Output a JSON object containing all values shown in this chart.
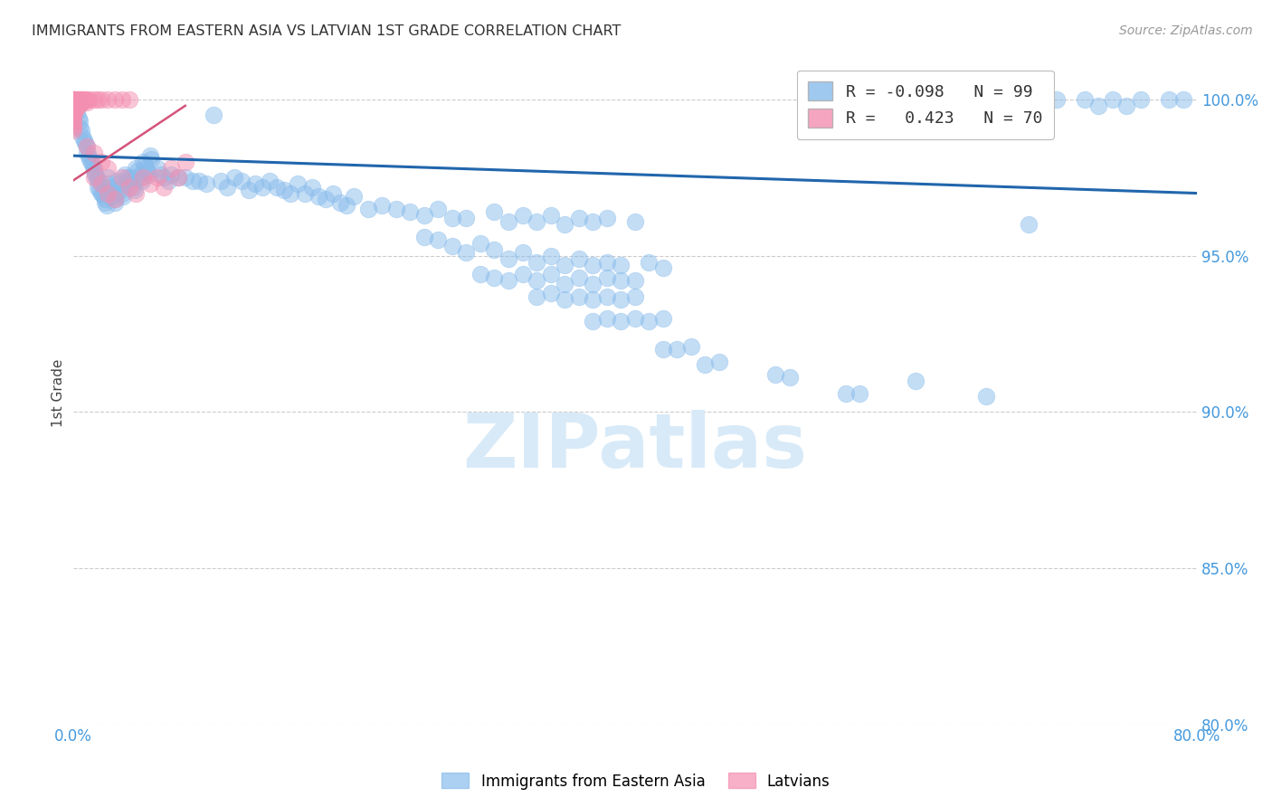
{
  "title": "IMMIGRANTS FROM EASTERN ASIA VS LATVIAN 1ST GRADE CORRELATION CHART",
  "source": "Source: ZipAtlas.com",
  "ylabel": "1st Grade",
  "watermark": "ZIPatlas",
  "legend_blue_r": "-0.098",
  "legend_blue_n": "99",
  "legend_pink_r": "0.423",
  "legend_pink_n": "70",
  "xlim": [
    0.0,
    0.8
  ],
  "ylim": [
    0.872,
    1.012
  ],
  "yticks": [
    0.88,
    0.9,
    0.92,
    0.94,
    0.95,
    0.96,
    0.98,
    1.0
  ],
  "ytick_display": [
    0.8,
    0.85,
    0.9,
    0.95,
    1.0
  ],
  "ytick_labels": [
    "80.0%",
    "85.0%",
    "90.0%",
    "95.0%",
    "100.0%"
  ],
  "xticks": [
    0.0,
    0.1,
    0.2,
    0.3,
    0.4,
    0.5,
    0.6,
    0.7,
    0.8
  ],
  "xtick_labels": [
    "0.0%",
    "",
    "",
    "",
    "",
    "",
    "",
    "",
    "80.0%"
  ],
  "blue_scatter": [
    [
      0.002,
      0.998
    ],
    [
      0.003,
      0.996
    ],
    [
      0.004,
      0.994
    ],
    [
      0.005,
      0.993
    ],
    [
      0.005,
      0.991
    ],
    [
      0.006,
      0.99
    ],
    [
      0.007,
      0.988
    ],
    [
      0.008,
      0.987
    ],
    [
      0.009,
      0.986
    ],
    [
      0.01,
      0.985
    ],
    [
      0.01,
      0.983
    ],
    [
      0.011,
      0.982
    ],
    [
      0.012,
      0.981
    ],
    [
      0.013,
      0.98
    ],
    [
      0.014,
      0.979
    ],
    [
      0.015,
      0.978
    ],
    [
      0.015,
      0.977
    ],
    [
      0.016,
      0.976
    ],
    [
      0.017,
      0.975
    ],
    [
      0.018,
      0.974
    ],
    [
      0.018,
      0.972
    ],
    [
      0.019,
      0.971
    ],
    [
      0.02,
      0.97
    ],
    [
      0.021,
      0.97
    ],
    [
      0.022,
      0.969
    ],
    [
      0.023,
      0.968
    ],
    [
      0.023,
      0.967
    ],
    [
      0.024,
      0.966
    ],
    [
      0.025,
      0.975
    ],
    [
      0.025,
      0.973
    ],
    [
      0.026,
      0.972
    ],
    [
      0.027,
      0.971
    ],
    [
      0.028,
      0.97
    ],
    [
      0.029,
      0.969
    ],
    [
      0.03,
      0.968
    ],
    [
      0.03,
      0.967
    ],
    [
      0.031,
      0.974
    ],
    [
      0.032,
      0.973
    ],
    [
      0.033,
      0.972
    ],
    [
      0.034,
      0.971
    ],
    [
      0.035,
      0.97
    ],
    [
      0.036,
      0.969
    ],
    [
      0.037,
      0.976
    ],
    [
      0.038,
      0.975
    ],
    [
      0.039,
      0.974
    ],
    [
      0.04,
      0.975
    ],
    [
      0.041,
      0.974
    ],
    [
      0.042,
      0.973
    ],
    [
      0.043,
      0.972
    ],
    [
      0.044,
      0.971
    ],
    [
      0.045,
      0.978
    ],
    [
      0.046,
      0.977
    ],
    [
      0.047,
      0.976
    ],
    [
      0.048,
      0.975
    ],
    [
      0.049,
      0.974
    ],
    [
      0.05,
      0.98
    ],
    [
      0.051,
      0.979
    ],
    [
      0.052,
      0.978
    ],
    [
      0.053,
      0.977
    ],
    [
      0.054,
      0.976
    ],
    [
      0.055,
      0.982
    ],
    [
      0.056,
      0.981
    ],
    [
      0.06,
      0.978
    ],
    [
      0.062,
      0.976
    ],
    [
      0.065,
      0.975
    ],
    [
      0.068,
      0.974
    ],
    [
      0.07,
      0.976
    ],
    [
      0.075,
      0.975
    ],
    [
      0.08,
      0.975
    ],
    [
      0.085,
      0.974
    ],
    [
      0.09,
      0.974
    ],
    [
      0.095,
      0.973
    ],
    [
      0.1,
      0.995
    ],
    [
      0.105,
      0.974
    ],
    [
      0.11,
      0.972
    ],
    [
      0.115,
      0.975
    ],
    [
      0.12,
      0.974
    ],
    [
      0.125,
      0.971
    ],
    [
      0.13,
      0.973
    ],
    [
      0.135,
      0.972
    ],
    [
      0.14,
      0.974
    ],
    [
      0.145,
      0.972
    ],
    [
      0.15,
      0.971
    ],
    [
      0.155,
      0.97
    ],
    [
      0.16,
      0.973
    ],
    [
      0.165,
      0.97
    ],
    [
      0.17,
      0.972
    ],
    [
      0.175,
      0.969
    ],
    [
      0.18,
      0.968
    ],
    [
      0.185,
      0.97
    ],
    [
      0.19,
      0.967
    ],
    [
      0.195,
      0.966
    ],
    [
      0.2,
      0.969
    ],
    [
      0.21,
      0.965
    ],
    [
      0.22,
      0.966
    ],
    [
      0.23,
      0.965
    ],
    [
      0.24,
      0.964
    ],
    [
      0.25,
      0.963
    ],
    [
      0.26,
      0.965
    ],
    [
      0.27,
      0.962
    ],
    [
      0.28,
      0.962
    ],
    [
      0.3,
      0.964
    ],
    [
      0.31,
      0.961
    ],
    [
      0.32,
      0.963
    ],
    [
      0.33,
      0.961
    ],
    [
      0.34,
      0.963
    ],
    [
      0.35,
      0.96
    ],
    [
      0.36,
      0.962
    ],
    [
      0.37,
      0.961
    ],
    [
      0.38,
      0.962
    ],
    [
      0.4,
      0.961
    ],
    [
      0.25,
      0.956
    ],
    [
      0.26,
      0.955
    ],
    [
      0.27,
      0.953
    ],
    [
      0.28,
      0.951
    ],
    [
      0.29,
      0.954
    ],
    [
      0.3,
      0.952
    ],
    [
      0.31,
      0.949
    ],
    [
      0.32,
      0.951
    ],
    [
      0.33,
      0.948
    ],
    [
      0.34,
      0.95
    ],
    [
      0.35,
      0.947
    ],
    [
      0.36,
      0.949
    ],
    [
      0.37,
      0.947
    ],
    [
      0.38,
      0.948
    ],
    [
      0.39,
      0.947
    ],
    [
      0.41,
      0.948
    ],
    [
      0.42,
      0.946
    ],
    [
      0.29,
      0.944
    ],
    [
      0.3,
      0.943
    ],
    [
      0.31,
      0.942
    ],
    [
      0.32,
      0.944
    ],
    [
      0.33,
      0.942
    ],
    [
      0.34,
      0.944
    ],
    [
      0.35,
      0.941
    ],
    [
      0.36,
      0.943
    ],
    [
      0.37,
      0.941
    ],
    [
      0.38,
      0.943
    ],
    [
      0.39,
      0.942
    ],
    [
      0.4,
      0.942
    ],
    [
      0.33,
      0.937
    ],
    [
      0.34,
      0.938
    ],
    [
      0.35,
      0.936
    ],
    [
      0.36,
      0.937
    ],
    [
      0.37,
      0.936
    ],
    [
      0.38,
      0.937
    ],
    [
      0.39,
      0.936
    ],
    [
      0.4,
      0.937
    ],
    [
      0.37,
      0.929
    ],
    [
      0.38,
      0.93
    ],
    [
      0.39,
      0.929
    ],
    [
      0.4,
      0.93
    ],
    [
      0.41,
      0.929
    ],
    [
      0.42,
      0.93
    ],
    [
      0.42,
      0.92
    ],
    [
      0.43,
      0.92
    ],
    [
      0.44,
      0.921
    ],
    [
      0.45,
      0.915
    ],
    [
      0.46,
      0.916
    ],
    [
      0.5,
      0.912
    ],
    [
      0.51,
      0.911
    ],
    [
      0.55,
      0.906
    ],
    [
      0.56,
      0.906
    ],
    [
      0.6,
      0.91
    ],
    [
      0.65,
      0.905
    ],
    [
      0.68,
      0.96
    ],
    [
      0.7,
      1.0
    ],
    [
      0.72,
      1.0
    ],
    [
      0.74,
      1.0
    ],
    [
      0.76,
      1.0
    ],
    [
      0.78,
      1.0
    ],
    [
      0.79,
      1.0
    ],
    [
      0.73,
      0.998
    ],
    [
      0.75,
      0.998
    ]
  ],
  "pink_scatter": [
    [
      0.0,
      1.0
    ],
    [
      0.0,
      1.0
    ],
    [
      0.0,
      1.0
    ],
    [
      0.0,
      1.0
    ],
    [
      0.0,
      1.0
    ],
    [
      0.0,
      0.999
    ],
    [
      0.0,
      0.998
    ],
    [
      0.0,
      0.997
    ],
    [
      0.0,
      0.996
    ],
    [
      0.0,
      0.995
    ],
    [
      0.0,
      0.994
    ],
    [
      0.0,
      0.993
    ],
    [
      0.0,
      0.992
    ],
    [
      0.0,
      0.991
    ],
    [
      0.0,
      0.99
    ],
    [
      0.001,
      1.0
    ],
    [
      0.001,
      0.999
    ],
    [
      0.001,
      0.998
    ],
    [
      0.001,
      0.997
    ],
    [
      0.001,
      0.996
    ],
    [
      0.002,
      1.0
    ],
    [
      0.002,
      0.999
    ],
    [
      0.002,
      0.998
    ],
    [
      0.002,
      0.997
    ],
    [
      0.003,
      1.0
    ],
    [
      0.003,
      0.999
    ],
    [
      0.003,
      0.998
    ],
    [
      0.004,
      1.0
    ],
    [
      0.004,
      0.999
    ],
    [
      0.004,
      0.998
    ],
    [
      0.005,
      1.0
    ],
    [
      0.005,
      0.999
    ],
    [
      0.006,
      1.0
    ],
    [
      0.006,
      0.999
    ],
    [
      0.007,
      1.0
    ],
    [
      0.007,
      0.999
    ],
    [
      0.008,
      1.0
    ],
    [
      0.009,
      1.0
    ],
    [
      0.01,
      1.0
    ],
    [
      0.01,
      0.999
    ],
    [
      0.012,
      1.0
    ],
    [
      0.015,
      1.0
    ],
    [
      0.018,
      1.0
    ],
    [
      0.02,
      1.0
    ],
    [
      0.025,
      1.0
    ],
    [
      0.03,
      1.0
    ],
    [
      0.035,
      1.0
    ],
    [
      0.04,
      1.0
    ],
    [
      0.01,
      0.985
    ],
    [
      0.015,
      0.983
    ],
    [
      0.02,
      0.98
    ],
    [
      0.025,
      0.978
    ],
    [
      0.015,
      0.975
    ],
    [
      0.02,
      0.973
    ],
    [
      0.025,
      0.97
    ],
    [
      0.03,
      0.968
    ],
    [
      0.035,
      0.975
    ],
    [
      0.04,
      0.972
    ],
    [
      0.045,
      0.97
    ],
    [
      0.05,
      0.975
    ],
    [
      0.055,
      0.973
    ],
    [
      0.06,
      0.975
    ],
    [
      0.065,
      0.972
    ],
    [
      0.07,
      0.978
    ],
    [
      0.075,
      0.975
    ],
    [
      0.08,
      0.98
    ]
  ],
  "blue_color": "#89BCEC",
  "pink_color": "#F48FB1",
  "blue_line_color": "#2166AC",
  "pink_line_color": "#D4547A",
  "grid_color": "#CCCCCC",
  "tick_color": "#4499DD",
  "title_color": "#333333",
  "source_color": "#999999",
  "watermark_color": "#D8EAF8",
  "background_color": "#FFFFFF",
  "blue_trend_x": [
    0.0,
    0.8
  ],
  "blue_trend_y": [
    0.982,
    0.97
  ],
  "pink_trend_x": [
    0.0,
    0.08
  ],
  "pink_trend_y": [
    0.974,
    0.998
  ]
}
